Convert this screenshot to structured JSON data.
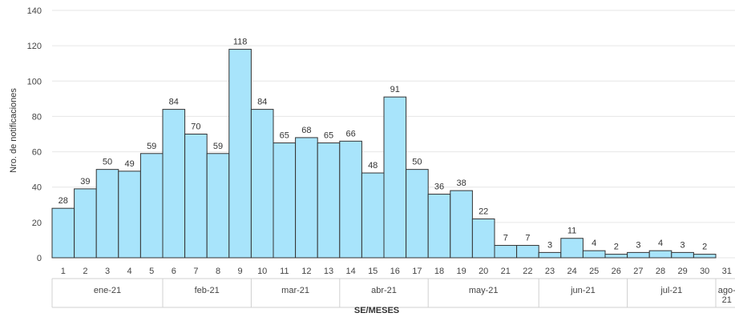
{
  "chart_data": {
    "type": "bar",
    "title": "",
    "ylabel": "Nro. de notificaciones",
    "xlabel": "SE/MESES",
    "ylim": [
      0,
      140
    ],
    "yticks": [
      0,
      20,
      40,
      60,
      80,
      100,
      120,
      140
    ],
    "grid": true,
    "bar_color": "#a8e4fb",
    "bar_border_color": "#333333",
    "categories": [
      "1",
      "2",
      "3",
      "4",
      "5",
      "6",
      "7",
      "8",
      "9",
      "10",
      "11",
      "12",
      "13",
      "14",
      "15",
      "16",
      "17",
      "18",
      "19",
      "20",
      "21",
      "22",
      "23",
      "24",
      "25",
      "26",
      "27",
      "28",
      "29",
      "30",
      "31"
    ],
    "values": [
      28,
      39,
      50,
      49,
      59,
      84,
      70,
      59,
      118,
      84,
      65,
      68,
      65,
      66,
      48,
      91,
      50,
      36,
      38,
      22,
      7,
      7,
      3,
      11,
      4,
      2,
      3,
      4,
      3,
      2,
      null
    ],
    "months": [
      {
        "label": "ene-21",
        "start": 0,
        "end": 4
      },
      {
        "label": "feb-21",
        "start": 5,
        "end": 8
      },
      {
        "label": "mar-21",
        "start": 9,
        "end": 12
      },
      {
        "label": "abr-21",
        "start": 13,
        "end": 16
      },
      {
        "label": "may-21",
        "start": 17,
        "end": 21
      },
      {
        "label": "jun-21",
        "start": 22,
        "end": 25
      },
      {
        "label": "jul-21",
        "start": 26,
        "end": 29
      },
      {
        "label": "ago-\n21",
        "start": 30,
        "end": 30
      }
    ]
  }
}
